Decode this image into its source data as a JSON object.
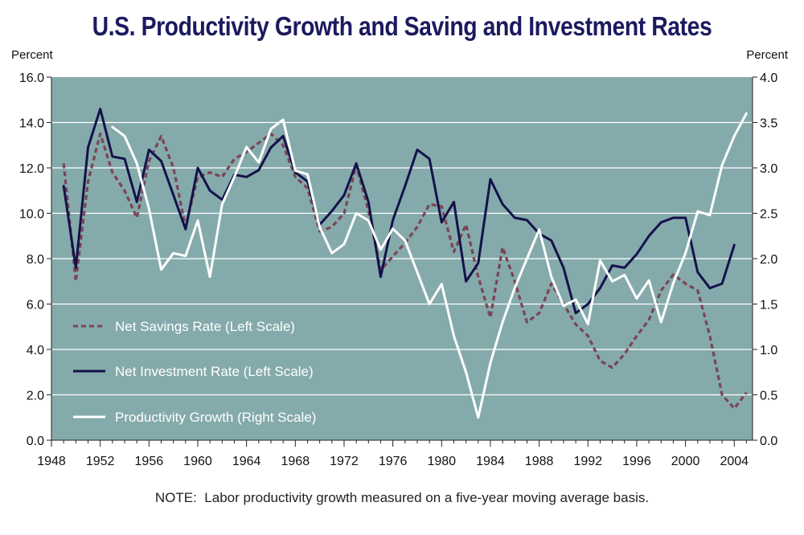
{
  "title": "U.S. Productivity Growth and Saving and Investment Rates",
  "note": "NOTE:  Labor productivity growth measured on a five-year moving average basis.",
  "chart_data": {
    "type": "line",
    "title": "U.S. Productivity Growth and Saving and Investment Rates",
    "left_axis": {
      "unit_label": "Percent",
      "ylim": [
        0,
        16
      ],
      "ticks": [
        "0.0",
        "2.0",
        "4.0",
        "6.0",
        "8.0",
        "10.0",
        "12.0",
        "14.0",
        "16.0"
      ]
    },
    "right_axis": {
      "unit_label": "Percent",
      "ylim": [
        0,
        4
      ],
      "ticks": [
        "0.0",
        "0.5",
        "1.0",
        "1.5",
        "2.0",
        "2.5",
        "3.0",
        "3.5",
        "4.0"
      ]
    },
    "x_axis": {
      "xlim": [
        1948,
        2005.5
      ],
      "ticks": [
        "1948",
        "1952",
        "1956",
        "1960",
        "1964",
        "1968",
        "1972",
        "1976",
        "1980",
        "1984",
        "1988",
        "1992",
        "1996",
        "2000",
        "2004"
      ]
    },
    "grid": true,
    "legend_placement": "bottom-left",
    "colors": {
      "plot_background": "#85aaab",
      "grid": "#ffffff",
      "savings": "#7a4556",
      "investment": "#14124a",
      "productivity": "#ffffff"
    },
    "series": [
      {
        "name": "Net Savings Rate (Left Scale)",
        "axis": "left",
        "style": "dashed",
        "x": [
          1949,
          1950,
          1951,
          1952,
          1953,
          1954,
          1955,
          1956,
          1957,
          1958,
          1959,
          1960,
          1961,
          1962,
          1963,
          1964,
          1965,
          1966,
          1967,
          1968,
          1969,
          1970,
          1971,
          1972,
          1973,
          1974,
          1975,
          1976,
          1977,
          1978,
          1979,
          1980,
          1981,
          1982,
          1983,
          1984,
          1985,
          1986,
          1987,
          1988,
          1989,
          1990,
          1991,
          1992,
          1993,
          1994,
          1995,
          1996,
          1997,
          1998,
          1999,
          2000,
          2001,
          2002,
          2003,
          2004,
          2005
        ],
        "values": [
          12.2,
          7.0,
          11.4,
          13.5,
          11.8,
          11.0,
          9.8,
          12.3,
          13.4,
          12.0,
          9.4,
          11.6,
          11.8,
          11.6,
          12.4,
          12.7,
          13.1,
          13.5,
          13.0,
          11.6,
          11.1,
          9.2,
          9.4,
          10.0,
          12.1,
          10.1,
          7.5,
          8.1,
          8.7,
          9.4,
          10.4,
          10.3,
          8.3,
          9.5,
          7.2,
          5.4,
          8.5,
          7.0,
          5.2,
          5.6,
          6.9,
          6.0,
          5.1,
          4.6,
          3.5,
          3.2,
          3.8,
          4.6,
          5.3,
          6.6,
          7.3,
          6.9,
          6.6,
          4.6,
          2.0,
          1.4,
          2.1
        ]
      },
      {
        "name": "Net Investment Rate (Left Scale)",
        "axis": "left",
        "style": "solid",
        "x": [
          1949,
          1950,
          1951,
          1952,
          1953,
          1954,
          1955,
          1956,
          1957,
          1958,
          1959,
          1960,
          1961,
          1962,
          1963,
          1964,
          1965,
          1966,
          1967,
          1968,
          1969,
          1970,
          1971,
          1972,
          1973,
          1974,
          1975,
          1976,
          1977,
          1978,
          1979,
          1980,
          1981,
          1982,
          1983,
          1984,
          1985,
          1986,
          1987,
          1988,
          1989,
          1990,
          1991,
          1992,
          1993,
          1994,
          1995,
          1996,
          1997,
          1998,
          1999,
          2000,
          2001,
          2002,
          2003,
          2004,
          2005
        ],
        "values": [
          11.2,
          7.6,
          12.9,
          14.6,
          12.5,
          12.4,
          10.5,
          12.8,
          12.3,
          10.8,
          9.3,
          12.0,
          11.0,
          10.6,
          11.7,
          11.6,
          11.9,
          12.9,
          13.4,
          11.8,
          11.4,
          9.5,
          10.1,
          10.8,
          12.2,
          10.5,
          7.2,
          9.7,
          11.2,
          12.8,
          12.4,
          9.6,
          10.5,
          7.0,
          7.8,
          11.5,
          10.4,
          9.8,
          9.7,
          9.1,
          8.8,
          7.6,
          5.6,
          6.0,
          6.7,
          7.7,
          7.6,
          8.2,
          9.0,
          9.6,
          9.8,
          9.8,
          7.4,
          6.7,
          6.9,
          8.6,
          null
        ]
      },
      {
        "name": "Productivity Growth (Right Scale)",
        "axis": "right",
        "style": "solid",
        "x": [
          1953,
          1954,
          1955,
          1956,
          1957,
          1958,
          1959,
          1960,
          1961,
          1962,
          1963,
          1964,
          1965,
          1966,
          1967,
          1968,
          1969,
          1970,
          1971,
          1972,
          1973,
          1974,
          1975,
          1976,
          1977,
          1978,
          1979,
          1980,
          1981,
          1982,
          1983,
          1984,
          1985,
          1986,
          1987,
          1988,
          1989,
          1990,
          1991,
          1992,
          1993,
          1994,
          1995,
          1996,
          1997,
          1998,
          1999,
          2000,
          2001,
          2002,
          2003,
          2004,
          2005
        ],
        "values": [
          3.45,
          3.35,
          3.05,
          2.55,
          1.88,
          2.06,
          2.03,
          2.42,
          1.8,
          2.6,
          2.9,
          3.23,
          3.06,
          3.43,
          3.53,
          2.97,
          2.93,
          2.35,
          2.06,
          2.16,
          2.5,
          2.42,
          2.1,
          2.33,
          2.2,
          1.85,
          1.5,
          1.72,
          1.15,
          0.75,
          0.25,
          0.85,
          1.3,
          1.68,
          2.0,
          2.32,
          1.8,
          1.48,
          1.55,
          1.28,
          1.98,
          1.75,
          1.82,
          1.56,
          1.76,
          1.3,
          1.73,
          2.06,
          2.52,
          2.48,
          3.03,
          3.35,
          3.6
        ]
      }
    ]
  }
}
